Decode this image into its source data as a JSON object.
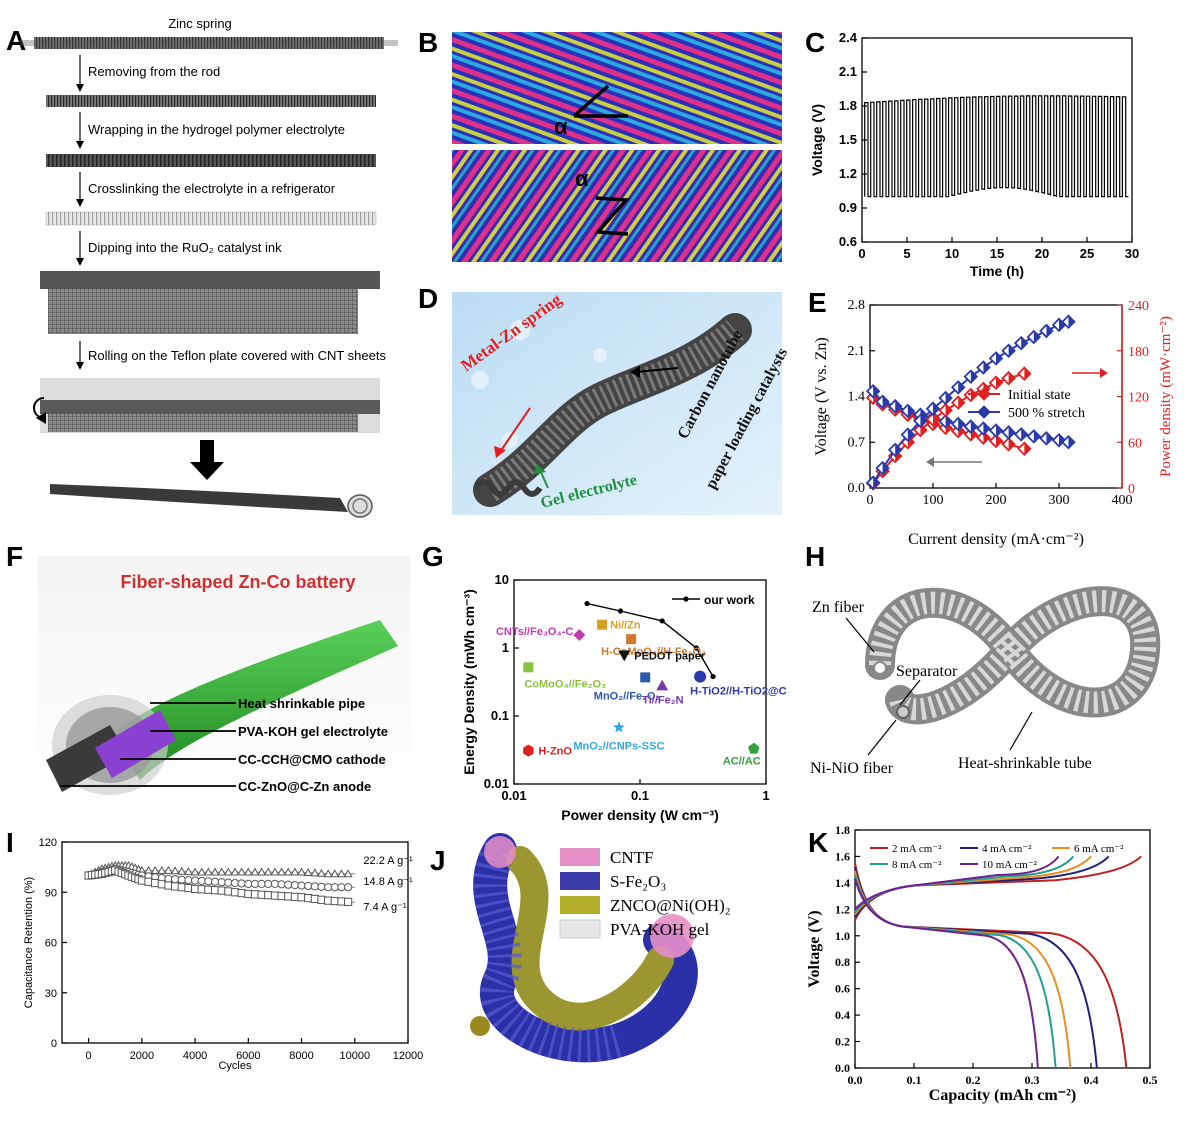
{
  "panel_letters": [
    "A",
    "B",
    "C",
    "D",
    "E",
    "F",
    "G",
    "H",
    "I",
    "J",
    "K"
  ],
  "panel_a": {
    "steps": [
      "Zinc spring",
      "Removing from the rod",
      "Wrapping in the hydrogel polymer electrolyte",
      "Crosslinking the electrolyte in a refrigerator",
      "Dipping into the RuO₂ catalyst ink",
      "Rolling on the Teflon plate covered with CNT sheets"
    ]
  },
  "panel_b": {
    "angle_label": "α"
  },
  "panel_d": {
    "labels": [
      "Metal-Zn spring",
      "Carbon nanotube",
      "paper loading catalysts",
      "Gel electrolyte"
    ]
  },
  "panel_f": {
    "title": "Fiber-shaped Zn-Co battery",
    "labels": [
      "Heat shrinkable pipe",
      "PVA-KOH gel electrolyte",
      "CC-CCH@CMO cathode",
      "CC-ZnO@C-Zn anode"
    ]
  },
  "panel_h": {
    "labels": [
      "Zn fiber",
      "Separator",
      "Ni-NiO fiber",
      "Heat-shrinkable tube"
    ]
  },
  "panel_j": {
    "legend": [
      {
        "label": "CNTF",
        "color": "#e58fc8"
      },
      {
        "label": "S-Fe₂O₃",
        "color": "#3a3aa8"
      },
      {
        "label": "ZNCO@Ni(OH)₂",
        "color": "#b3ad2a"
      },
      {
        "label": "PVA-KOH gel",
        "color": "#e6e6e6"
      }
    ]
  },
  "chart_data": [
    {
      "id": "C",
      "type": "line",
      "xlabel": "Time (h)",
      "ylabel": "Voltage (V)",
      "xlim": [
        0,
        30
      ],
      "ylim": [
        0.6,
        2.4
      ],
      "xticks": [
        0,
        5,
        10,
        15,
        20,
        25,
        30
      ],
      "yticks": [
        0.6,
        0.9,
        1.2,
        1.5,
        1.8,
        2.1,
        2.4
      ],
      "cycles": 44,
      "series": [
        {
          "charge_start": 1.83,
          "charge_end": 1.88,
          "discharge": 1.0
        }
      ]
    },
    {
      "id": "E",
      "type": "line",
      "xlabel": "Current density (mA·cm⁻²)",
      "ylabel": "Voltage (V vs. Zn)",
      "ylabel_right": "Power density (mW·cm⁻²)",
      "xlim": [
        0,
        400
      ],
      "ylim": [
        0,
        2.8
      ],
      "ylim_right": [
        0,
        240
      ],
      "xticks": [
        0,
        100,
        200,
        300,
        400
      ],
      "yticks": [
        0.0,
        0.7,
        1.4,
        2.1,
        2.8
      ],
      "yticks_right": [
        0,
        60,
        120,
        180,
        240
      ],
      "legend": [
        "Initial state",
        "500 % stretch"
      ],
      "series": [
        {
          "name": "Initial state",
          "kind": "voltage",
          "color": "#e02020",
          "x": [
            5,
            20,
            40,
            60,
            80,
            100,
            120,
            140,
            160,
            180,
            200,
            220,
            245
          ],
          "y": [
            1.38,
            1.28,
            1.2,
            1.12,
            1.05,
            0.98,
            0.92,
            0.87,
            0.82,
            0.77,
            0.72,
            0.67,
            0.6
          ]
        },
        {
          "name": "500 % stretch",
          "kind": "voltage",
          "color": "#2a3aa8",
          "x": [
            5,
            20,
            40,
            60,
            80,
            100,
            120,
            140,
            160,
            180,
            200,
            220,
            240,
            260,
            280,
            300,
            315
          ],
          "y": [
            1.48,
            1.32,
            1.25,
            1.18,
            1.12,
            1.07,
            1.02,
            0.98,
            0.94,
            0.91,
            0.88,
            0.85,
            0.82,
            0.79,
            0.76,
            0.73,
            0.7
          ]
        },
        {
          "name": "Initial state",
          "kind": "power",
          "color": "#e02020",
          "x": [
            5,
            20,
            40,
            60,
            80,
            100,
            120,
            140,
            160,
            180,
            200,
            220,
            245
          ],
          "y": [
            6,
            22,
            42,
            60,
            76,
            90,
            102,
            112,
            122,
            130,
            138,
            144,
            150
          ]
        },
        {
          "name": "500 % stretch",
          "kind": "power",
          "color": "#2a3aa8",
          "x": [
            5,
            20,
            40,
            60,
            80,
            100,
            120,
            140,
            160,
            180,
            200,
            220,
            240,
            260,
            280,
            300,
            315
          ],
          "y": [
            7,
            26,
            50,
            70,
            88,
            104,
            118,
            132,
            146,
            158,
            170,
            180,
            190,
            198,
            206,
            214,
            218
          ]
        }
      ]
    },
    {
      "id": "G",
      "type": "scatter",
      "xlabel": "Power density (W cm⁻³)",
      "ylabel": "Energy Density (mWh cm⁻³)",
      "scale": "log",
      "xlim": [
        0.01,
        1
      ],
      "ylim": [
        0.01,
        10
      ],
      "xticks": [
        0.01,
        0.1,
        1
      ],
      "yticks": [
        0.01,
        0.1,
        1,
        10
      ],
      "xtick_labels": [
        "0.01",
        "0.1",
        "1"
      ],
      "ytick_labels": [
        "0.01",
        "0.1",
        "1",
        "10"
      ],
      "legend": [
        "our work"
      ],
      "series": [
        {
          "name": "our work",
          "x": [
            0.038,
            0.07,
            0.15,
            0.28,
            0.38
          ],
          "y": [
            4.5,
            3.5,
            2.5,
            1.0,
            0.38
          ]
        }
      ],
      "points": [
        {
          "label": "CNTs//Fe₃O₄-C",
          "x": 0.033,
          "y": 1.55,
          "color": "#c03cb0",
          "marker": "diamond"
        },
        {
          "label": "Ni//Zn",
          "x": 0.05,
          "y": 2.2,
          "color": "#d8a020",
          "marker": "rect"
        },
        {
          "label": "H-CoMoO₄//H-Fe₂O₃",
          "x": 0.085,
          "y": 1.35,
          "color": "#d07830",
          "marker": "rect"
        },
        {
          "label": "PEDOT paper",
          "x": 0.075,
          "y": 0.78,
          "color": "#111111",
          "marker": "tri-down"
        },
        {
          "label": "CoMoO₄//Fe₂O₃",
          "x": 0.013,
          "y": 0.52,
          "color": "#8ac040",
          "marker": "rect"
        },
        {
          "label": "MnO₂//Fe₂O₃",
          "x": 0.11,
          "y": 0.37,
          "color": "#2a5aa8",
          "marker": "rect"
        },
        {
          "label": "H-TiO2//H-TiO2@C",
          "x": 0.3,
          "y": 0.38,
          "color": "#2a3aa8",
          "marker": "circle"
        },
        {
          "label": "Ti//Fe₂N",
          "x": 0.15,
          "y": 0.28,
          "color": "#7a3aa8",
          "marker": "tri"
        },
        {
          "label": "MnO₂//CNPs-SSC",
          "x": 0.068,
          "y": 0.068,
          "color": "#30a8e0",
          "marker": "star"
        },
        {
          "label": "H-ZnO",
          "x": 0.013,
          "y": 0.031,
          "color": "#e02020",
          "marker": "hexagon"
        },
        {
          "label": "AC//AC",
          "x": 0.8,
          "y": 0.033,
          "color": "#30a040",
          "marker": "pentagon"
        }
      ]
    },
    {
      "id": "I",
      "type": "line",
      "xlabel": "Cycles",
      "ylabel": "Capacitance Retention (%)",
      "xlim": [
        -1000,
        12000
      ],
      "ylim": [
        0,
        120
      ],
      "xticks": [
        0,
        2000,
        4000,
        6000,
        8000,
        10000,
        12000
      ],
      "yticks": [
        0,
        30,
        60,
        90,
        120
      ],
      "series": [
        {
          "name": "22.2 A g⁻¹",
          "marker": "tri",
          "x": [
            0,
            500,
            1000,
            1500,
            2000,
            3000,
            4000,
            5000,
            6000,
            7000,
            8000,
            9000,
            10000
          ],
          "y": [
            100,
            104,
            106,
            106,
            103,
            103,
            102,
            102,
            102,
            102,
            102,
            101,
            101
          ]
        },
        {
          "name": "14.8 A g⁻¹",
          "marker": "circle",
          "x": [
            0,
            500,
            1000,
            1500,
            2000,
            3000,
            4000,
            5000,
            6000,
            7000,
            8000,
            9000,
            10000
          ],
          "y": [
            100,
            102,
            104,
            102,
            100,
            98,
            97,
            96,
            95,
            95,
            94,
            93,
            93
          ]
        },
        {
          "name": "7.4 A g⁻¹",
          "marker": "square",
          "x": [
            0,
            500,
            1000,
            1500,
            2000,
            3000,
            4000,
            5000,
            6000,
            7000,
            8000,
            9000,
            10000
          ],
          "y": [
            100,
            101,
            103,
            100,
            97,
            94,
            92,
            91,
            89,
            88,
            87,
            85,
            84
          ]
        }
      ]
    },
    {
      "id": "K",
      "type": "line",
      "xlabel": "Capacity (mAh cm⁻²)",
      "ylabel": "Voltage (V)",
      "xlim": [
        0,
        0.5
      ],
      "ylim": [
        0,
        1.8
      ],
      "xticks": [
        0.0,
        0.1,
        0.2,
        0.3,
        0.4,
        0.5
      ],
      "yticks": [
        0.0,
        0.2,
        0.4,
        0.6,
        0.8,
        1.0,
        1.2,
        1.4,
        1.6,
        1.8
      ],
      "series": [
        {
          "name": "2 mA cm⁻²",
          "color": "#c02020",
          "discharge_cap": 0.46,
          "charge_cap": 0.485
        },
        {
          "name": "4 mA cm⁻²",
          "color": "#202080",
          "discharge_cap": 0.41,
          "charge_cap": 0.43
        },
        {
          "name": "6 mA cm⁻²",
          "color": "#e89020",
          "discharge_cap": 0.365,
          "charge_cap": 0.4
        },
        {
          "name": "8 mA cm⁻²",
          "color": "#20a090",
          "discharge_cap": 0.34,
          "charge_cap": 0.37
        },
        {
          "name": "10 mA cm⁻²",
          "color": "#702090",
          "discharge_cap": 0.31,
          "charge_cap": 0.345
        }
      ]
    }
  ]
}
